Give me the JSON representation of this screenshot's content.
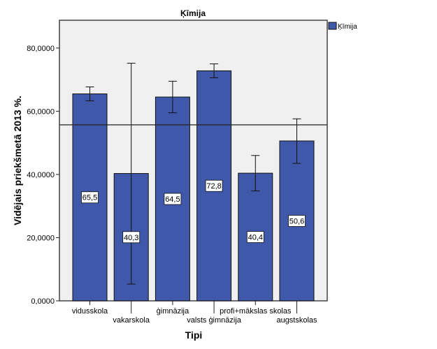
{
  "chart_data": {
    "type": "bar",
    "title": "Ķīmija",
    "xlabel": "Tipi",
    "ylabel": "Vidējais priekšmetā 2013 %.",
    "ylim": [
      0,
      88.8
    ],
    "yticks": [
      0,
      20,
      40,
      60,
      80
    ],
    "ytick_labels": [
      "0,0000",
      "20,0000",
      "40,0000",
      "60,0000",
      "80,0000"
    ],
    "categories": [
      "vidusskola",
      "vakarskola",
      "ģimnāzija",
      "valsts ģimnāzija",
      "profi+mākslas skolas",
      "augstskolas"
    ],
    "series": [
      {
        "name": "Ķīmija",
        "values": [
          65.5,
          40.3,
          64.5,
          72.8,
          40.4,
          50.6
        ],
        "value_labels": [
          "65,5",
          "40,3",
          "64,5",
          "72,8",
          "40,4",
          "50,6"
        ],
        "error_low": [
          63.3,
          5.3,
          59.5,
          70.6,
          34.8,
          43.5
        ],
        "error_high": [
          67.7,
          75.2,
          69.5,
          75.0,
          46.0,
          57.6
        ]
      }
    ],
    "reference_line": 55.7,
    "legend": {
      "placement": "top-right",
      "entries": [
        "Ķīmija"
      ]
    },
    "grid": false,
    "colors": {
      "bar": "#3f58a9",
      "plot_bg": "#f0f0f0"
    }
  }
}
